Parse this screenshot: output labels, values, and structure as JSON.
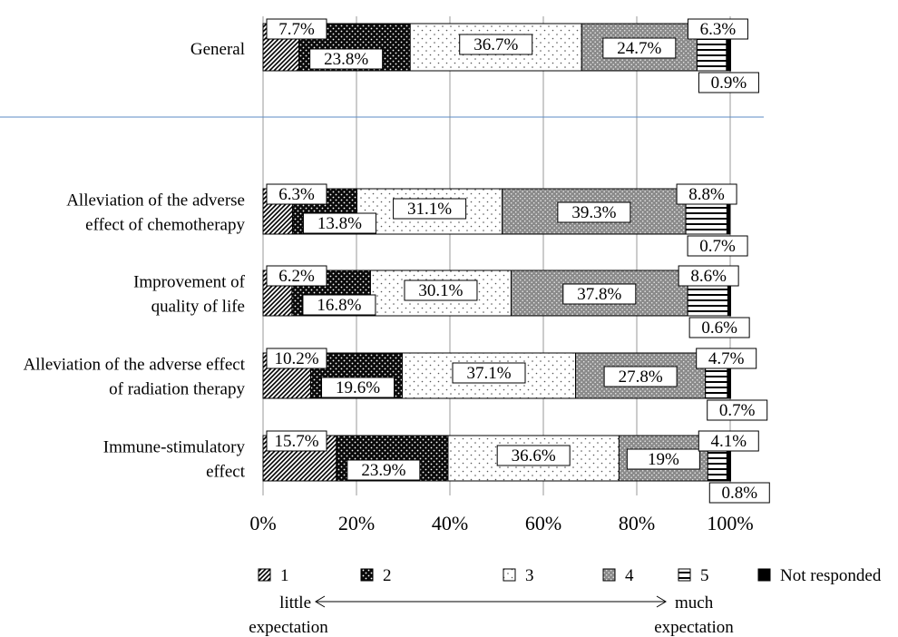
{
  "chart_data": {
    "type": "bar",
    "orientation": "horizontal",
    "stacked": "percent",
    "xlim": [
      0,
      100
    ],
    "x_ticks": [
      0,
      20,
      40,
      60,
      80,
      100
    ],
    "x_tick_labels": [
      "0%",
      "20%",
      "40%",
      "60%",
      "80%",
      "100%"
    ],
    "grid": "vertical",
    "categories": [
      {
        "lines": [
          "General"
        ]
      },
      {
        "lines": [
          "Alleviation of the adverse",
          "effect of chemotherapy"
        ]
      },
      {
        "lines": [
          "Improvement of",
          "quality of life"
        ]
      },
      {
        "lines": [
          "Alleviation of the adverse effect",
          "of radiation therapy"
        ]
      },
      {
        "lines": [
          "Immune-stimulatory",
          "effect"
        ]
      }
    ],
    "series": [
      {
        "name": "1",
        "pattern": "diagonal",
        "values": [
          7.7,
          6.3,
          6.2,
          10.2,
          15.7
        ],
        "labels": [
          "7.7%",
          "6.3%",
          "6.2%",
          "10.2%",
          "15.7%"
        ]
      },
      {
        "name": "2",
        "pattern": "dark-dots",
        "values": [
          23.8,
          13.8,
          16.8,
          19.6,
          23.9
        ],
        "labels": [
          "23.8%",
          "13.8%",
          "16.8%",
          "19.6%",
          "23.9%"
        ]
      },
      {
        "name": "3",
        "pattern": "sparse-dots",
        "values": [
          36.7,
          31.1,
          30.1,
          37.1,
          36.6
        ],
        "labels": [
          "36.7%",
          "31.1%",
          "30.1%",
          "37.1%",
          "36.6%"
        ]
      },
      {
        "name": "4",
        "pattern": "grey-dots",
        "values": [
          24.7,
          39.3,
          37.8,
          27.8,
          19
        ],
        "labels": [
          "24.7%",
          "39.3%",
          "37.8%",
          "27.8%",
          "19%"
        ]
      },
      {
        "name": "5",
        "pattern": "horizontal-lines",
        "values": [
          6.3,
          8.8,
          8.6,
          4.7,
          4.1
        ],
        "labels": [
          "6.3%",
          "8.8%",
          "8.6%",
          "4.7%",
          "4.1%"
        ]
      },
      {
        "name": "Not responded",
        "pattern": "solid-black",
        "values": [
          0.9,
          0.7,
          0.6,
          0.7,
          0.8
        ],
        "labels": [
          "0.9%",
          "0.7%",
          "0.6%",
          "0.7%",
          "0.8%"
        ]
      }
    ],
    "legend": {
      "placement": "bottom",
      "low_label": [
        "little",
        "expectation"
      ],
      "high_label": [
        "much",
        "expectation"
      ]
    }
  }
}
